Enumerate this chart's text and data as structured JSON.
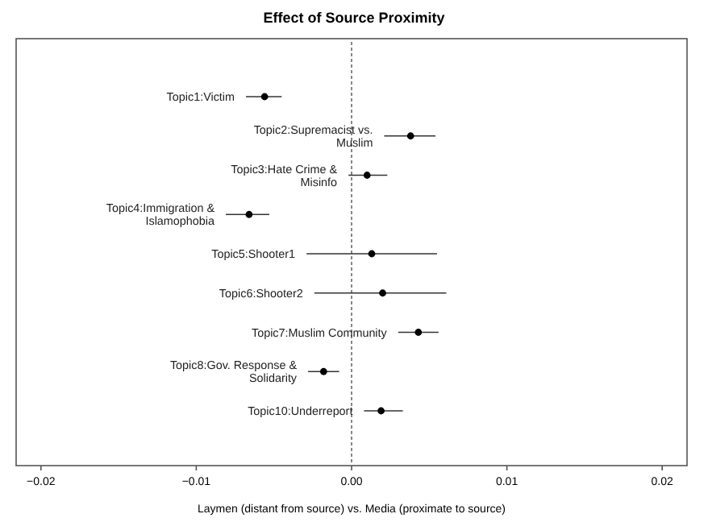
{
  "chart_data": {
    "type": "scatter",
    "orientation": "horizontal",
    "title": "Effect of Source Proximity",
    "xlabel": "Laymen (distant from source) vs. Media (proximate to source)",
    "categories": [
      "Topic1:Victim",
      "Topic2:Supremacist vs.\nMuslim",
      "Topic3:Hate Crime &\nMisinfo",
      "Topic4:Immigration &\nIslamophobia",
      "Topic5:Shooter1",
      "Topic6:Shooter2",
      "Topic7:Muslim Community",
      "Topic8:Gov. Response &\nSolidarity",
      "Topic10:Underreport"
    ],
    "values": [
      -0.0056,
      0.0038,
      0.001,
      -0.0066,
      0.0013,
      0.002,
      0.0043,
      -0.0018,
      0.0019
    ],
    "errors": [
      [
        -0.0068,
        -0.0045
      ],
      [
        0.0021,
        0.0054
      ],
      [
        -0.0002,
        0.0023
      ],
      [
        -0.0081,
        -0.0053
      ],
      [
        -0.0029,
        0.0055
      ],
      [
        -0.0024,
        0.0061
      ],
      [
        0.003,
        0.0056
      ],
      [
        -0.0028,
        -0.0008
      ],
      [
        0.0008,
        0.0033
      ]
    ],
    "color": "#000000",
    "marker": "circle",
    "xlim": [
      -0.0216,
      0.0216
    ],
    "xticks": [
      {
        "value": -0.02,
        "label": "−0.02"
      },
      {
        "value": -0.01,
        "label": "−0.01"
      },
      {
        "value": 0,
        "label": "0.00"
      },
      {
        "value": 0.01,
        "label": "0.01"
      },
      {
        "value": 0.02,
        "label": "0.02"
      }
    ],
    "ref_lines": [
      {
        "axis": "x",
        "value": 0,
        "line_style": "dashed",
        "color": "#555555"
      }
    ],
    "grid": false
  }
}
